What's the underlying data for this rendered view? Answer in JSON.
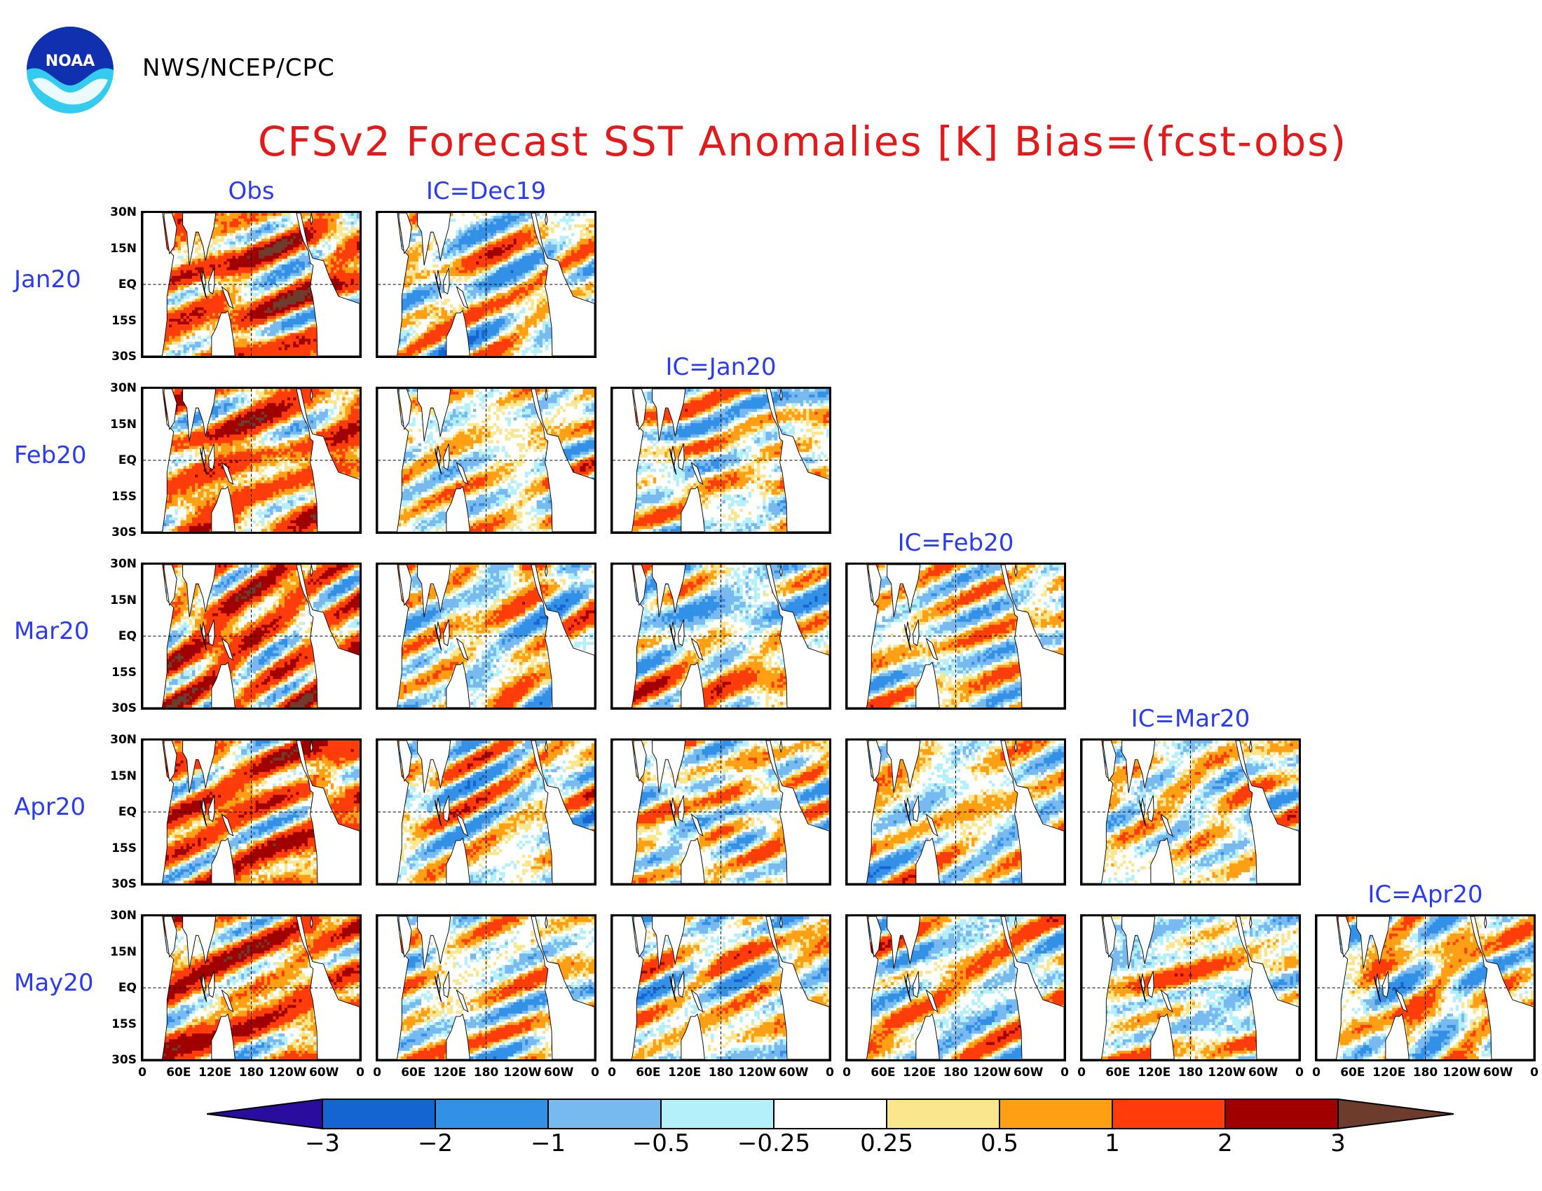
{
  "header": {
    "agency": "NWS/NCEP/CPC",
    "title": "CFSv2 Forecast SST Anomalies [K] Bias=(fcst-obs)",
    "logo_text": "NOAA"
  },
  "columns": [
    "Obs",
    "IC=Dec19",
    "IC=Jan20",
    "IC=Feb20",
    "IC=Mar20",
    "IC=Apr20"
  ],
  "rows": [
    "Jan20",
    "Feb20",
    "Mar20",
    "Apr20",
    "May20"
  ],
  "lat_ticks": [
    "30N",
    "15N",
    "EQ",
    "15S",
    "30S"
  ],
  "lon_ticks": [
    "0",
    "60E",
    "120E",
    "180",
    "120W",
    "60W",
    "0"
  ],
  "colorbar": {
    "labels": [
      "−3",
      "−2",
      "−1",
      "−0.5",
      "−0.25",
      "0.25",
      "0.5",
      "1",
      "2",
      "3"
    ],
    "colors": [
      "#2a0d9e",
      "#1464d2",
      "#3291e6",
      "#78b9f0",
      "#b4f0fa",
      "#ffffff",
      "#fae68c",
      "#ffa014",
      "#ff3c0a",
      "#a00000",
      "#6e3c2d"
    ]
  },
  "panels": [
    {
      "row": "Jan20",
      "column": "Obs"
    },
    {
      "row": "Jan20",
      "column": "IC=Dec19"
    },
    {
      "row": "Feb20",
      "column": "Obs"
    },
    {
      "row": "Feb20",
      "column": "IC=Dec19"
    },
    {
      "row": "Feb20",
      "column": "IC=Jan20"
    },
    {
      "row": "Mar20",
      "column": "Obs"
    },
    {
      "row": "Mar20",
      "column": "IC=Dec19"
    },
    {
      "row": "Mar20",
      "column": "IC=Jan20"
    },
    {
      "row": "Mar20",
      "column": "IC=Feb20"
    },
    {
      "row": "Apr20",
      "column": "Obs"
    },
    {
      "row": "Apr20",
      "column": "IC=Dec19"
    },
    {
      "row": "Apr20",
      "column": "IC=Jan20"
    },
    {
      "row": "Apr20",
      "column": "IC=Feb20"
    },
    {
      "row": "Apr20",
      "column": "IC=Mar20"
    },
    {
      "row": "May20",
      "column": "Obs"
    },
    {
      "row": "May20",
      "column": "IC=Dec19"
    },
    {
      "row": "May20",
      "column": "IC=Jan20"
    },
    {
      "row": "May20",
      "column": "IC=Feb20"
    },
    {
      "row": "May20",
      "column": "IC=Mar20"
    },
    {
      "row": "May20",
      "column": "IC=Apr20"
    }
  ]
}
